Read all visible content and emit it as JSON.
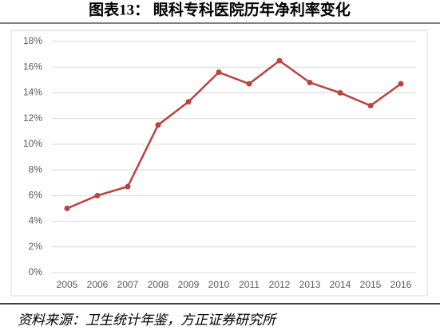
{
  "chart_data": {
    "type": "line",
    "title": "图表13：  眼科专科医院历年净利率变化",
    "source": "资料来源：卫生统计年鉴，方正证券研究所",
    "categories": [
      "2005",
      "2006",
      "2007",
      "2008",
      "2009",
      "2010",
      "2011",
      "2012",
      "2013",
      "2014",
      "2015",
      "2016"
    ],
    "values": [
      5.0,
      6.0,
      6.7,
      11.5,
      13.3,
      15.6,
      14.7,
      16.5,
      14.8,
      14.0,
      13.0,
      14.7
    ],
    "color": "#b8433f",
    "ylim": [
      0,
      18
    ],
    "yticks": [
      {
        "value": 0,
        "label": "0%"
      },
      {
        "value": 2,
        "label": "2%"
      },
      {
        "value": 4,
        "label": "4%"
      },
      {
        "value": 6,
        "label": "6%"
      },
      {
        "value": 8,
        "label": "8%"
      },
      {
        "value": 10,
        "label": "10%"
      },
      {
        "value": 12,
        "label": "12%"
      },
      {
        "value": 14,
        "label": "14%"
      },
      {
        "value": 16,
        "label": "16%"
      },
      {
        "value": 18,
        "label": "18%"
      }
    ],
    "grid": true
  }
}
